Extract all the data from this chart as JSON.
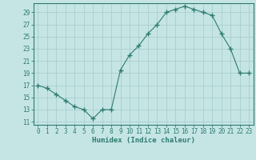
{
  "x": [
    0,
    1,
    2,
    3,
    4,
    5,
    6,
    7,
    8,
    9,
    10,
    11,
    12,
    13,
    14,
    15,
    16,
    17,
    18,
    19,
    20,
    21,
    22,
    23
  ],
  "y": [
    17,
    16.5,
    15.5,
    14.5,
    13.5,
    13,
    11.5,
    13,
    13,
    19.5,
    22,
    23.5,
    25.5,
    27,
    29,
    29.5,
    30,
    29.5,
    29,
    28.5,
    25.5,
    23,
    19,
    19
  ],
  "line_color": "#2E7B6E",
  "marker": "+",
  "marker_size": 4,
  "bg_color": "#C5E5E5",
  "grid_color": "#AACECE",
  "xlabel": "Humidex (Indice chaleur)",
  "xlim": [
    -0.5,
    23.5
  ],
  "ylim": [
    10.5,
    30.5
  ],
  "yticks": [
    11,
    13,
    15,
    17,
    19,
    21,
    23,
    25,
    27,
    29
  ],
  "xticks": [
    0,
    1,
    2,
    3,
    4,
    5,
    6,
    7,
    8,
    9,
    10,
    11,
    12,
    13,
    14,
    15,
    16,
    17,
    18,
    19,
    20,
    21,
    22,
    23
  ],
  "tick_color": "#2E7B6E",
  "label_color": "#2E7B6E",
  "font_family": "monospace",
  "tick_fontsize": 5.5,
  "xlabel_fontsize": 6.5
}
